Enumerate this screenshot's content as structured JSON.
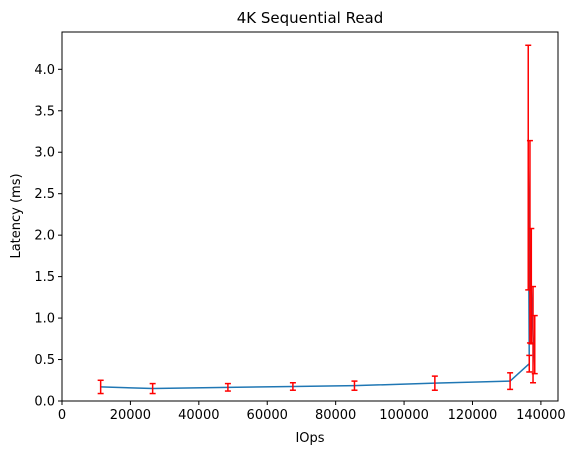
{
  "chart_data": {
    "type": "line",
    "title": "4K  Sequential Read",
    "xlabel": "IOps",
    "ylabel": "Latency (ms)",
    "xlim": [
      0,
      145000
    ],
    "ylim": [
      0,
      4.45
    ],
    "x_ticks": [
      0,
      20000,
      40000,
      60000,
      80000,
      100000,
      120000,
      140000
    ],
    "x_tick_labels": [
      "0",
      "20000",
      "40000",
      "60000",
      "80000",
      "100000",
      "120000",
      "140000"
    ],
    "y_ticks": [
      0,
      0.5,
      1.0,
      1.5,
      2.0,
      2.5,
      3.0,
      3.5,
      4.0
    ],
    "y_tick_labels": [
      "0.0",
      "0.5",
      "1.0",
      "1.5",
      "2.0",
      "2.5",
      "3.0",
      "3.5",
      "4.0"
    ],
    "grid": false,
    "legend": "none",
    "series": [
      {
        "color": "#1f77b4",
        "errorbar_color": "#ff0000",
        "points": [
          {
            "x": 11300,
            "y": 0.17,
            "ylo": 0.09,
            "yhi": 0.25
          },
          {
            "x": 26500,
            "y": 0.15,
            "ylo": 0.09,
            "yhi": 0.21
          },
          {
            "x": 48500,
            "y": 0.165,
            "ylo": 0.12,
            "yhi": 0.21
          },
          {
            "x": 67500,
            "y": 0.175,
            "ylo": 0.13,
            "yhi": 0.22
          },
          {
            "x": 85500,
            "y": 0.185,
            "ylo": 0.13,
            "yhi": 0.24
          },
          {
            "x": 109000,
            "y": 0.215,
            "ylo": 0.13,
            "yhi": 0.3
          },
          {
            "x": 131000,
            "y": 0.24,
            "ylo": 0.14,
            "yhi": 0.34
          },
          {
            "x": 136600,
            "y": 0.45,
            "ylo": 0.35,
            "yhi": 0.55
          },
          {
            "x": 136300,
            "y": 2.82,
            "ylo": 1.34,
            "yhi": 4.29
          },
          {
            "x": 136800,
            "y": 1.92,
            "ylo": 0.7,
            "yhi": 3.14
          },
          {
            "x": 137200,
            "y": 1.38,
            "ylo": 0.69,
            "yhi": 2.08
          },
          {
            "x": 137700,
            "y": 0.8,
            "ylo": 0.22,
            "yhi": 1.38
          },
          {
            "x": 138200,
            "y": 0.42,
            "ylo": 0.33,
            "yhi": 1.03
          }
        ]
      }
    ]
  }
}
